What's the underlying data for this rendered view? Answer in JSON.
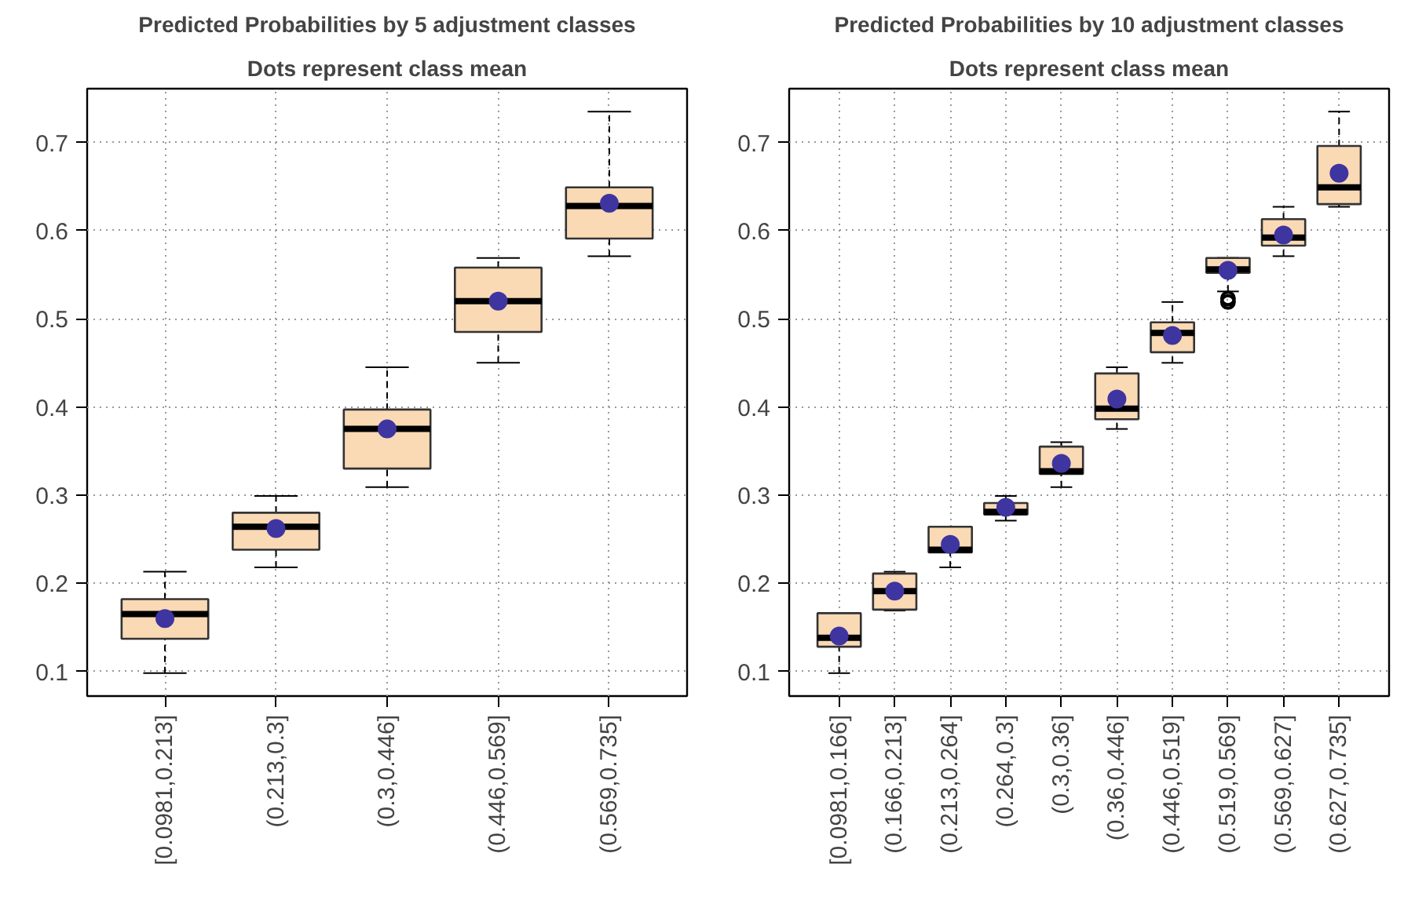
{
  "chart_data": [
    {
      "type": "box",
      "title": "Predicted Probabilities by 5 adjustment classes",
      "subtitle": "Dots represent class mean",
      "categories": [
        "[0.0981,0.213]",
        "(0.213,0.3]",
        "(0.3,0.446]",
        "(0.446,0.569]",
        "(0.569,0.735]"
      ],
      "series": [
        {
          "color": "#fad9b5",
          "boxes": [
            {
              "low": 0.098,
              "q1": 0.137,
              "median": 0.165,
              "q3": 0.182,
              "high": 0.213,
              "mean": 0.16
            },
            {
              "low": 0.218,
              "q1": 0.238,
              "median": 0.264,
              "q3": 0.28,
              "high": 0.299,
              "mean": 0.262
            },
            {
              "low": 0.309,
              "q1": 0.33,
              "median": 0.375,
              "q3": 0.397,
              "high": 0.445,
              "mean": 0.375
            },
            {
              "low": 0.45,
              "q1": 0.485,
              "median": 0.52,
              "q3": 0.558,
              "high": 0.569,
              "mean": 0.52
            },
            {
              "low": 0.571,
              "q1": 0.591,
              "median": 0.628,
              "q3": 0.649,
              "high": 0.735,
              "mean": 0.631
            }
          ]
        }
      ],
      "ylim": [
        0.072,
        0.761
      ],
      "yticks": [
        0.1,
        0.2,
        0.3,
        0.4,
        0.5,
        0.6,
        0.7
      ],
      "grid": true
    },
    {
      "type": "box",
      "title": "Predicted Probabilities by 10 adjustment classes",
      "subtitle": "Dots represent class mean",
      "categories": [
        "[0.0981,0.166]",
        "(0.166,0.213]",
        "(0.213,0.264]",
        "(0.264,0.3]",
        "(0.3,0.36]",
        "(0.36,0.446]",
        "(0.446,0.519]",
        "(0.519,0.569]",
        "(0.569,0.627]",
        "(0.627,0.735]"
      ],
      "series": [
        {
          "color": "#fad9b5",
          "boxes": [
            {
              "low": 0.098,
              "q1": 0.128,
              "median": 0.138,
              "q3": 0.166,
              "high": 0.166,
              "mean": 0.14
            },
            {
              "low": 0.169,
              "q1": 0.17,
              "median": 0.191,
              "q3": 0.211,
              "high": 0.213,
              "mean": 0.191
            },
            {
              "low": 0.218,
              "q1": 0.235,
              "median": 0.238,
              "q3": 0.264,
              "high": 0.264,
              "mean": 0.244
            },
            {
              "low": 0.271,
              "q1": 0.278,
              "median": 0.281,
              "q3": 0.291,
              "high": 0.299,
              "mean": 0.286
            },
            {
              "low": 0.309,
              "q1": 0.324,
              "median": 0.327,
              "q3": 0.355,
              "high": 0.36,
              "mean": 0.336
            },
            {
              "low": 0.375,
              "q1": 0.386,
              "median": 0.398,
              "q3": 0.438,
              "high": 0.445,
              "mean": 0.409
            },
            {
              "low": 0.45,
              "q1": 0.462,
              "median": 0.484,
              "q3": 0.496,
              "high": 0.519,
              "mean": 0.481
            },
            {
              "low": 0.531,
              "q1": 0.552,
              "median": 0.556,
              "q3": 0.569,
              "high": 0.569,
              "mean": 0.555,
              "outliers": [
                0.523,
                0.519
              ]
            },
            {
              "low": 0.571,
              "q1": 0.583,
              "median": 0.592,
              "q3": 0.613,
              "high": 0.627,
              "mean": 0.595
            },
            {
              "low": 0.627,
              "q1": 0.63,
              "median": 0.649,
              "q3": 0.696,
              "high": 0.735,
              "mean": 0.665
            }
          ]
        }
      ],
      "ylim": [
        0.072,
        0.761
      ],
      "yticks": [
        0.1,
        0.2,
        0.3,
        0.4,
        0.5,
        0.6,
        0.7
      ],
      "grid": true
    }
  ]
}
